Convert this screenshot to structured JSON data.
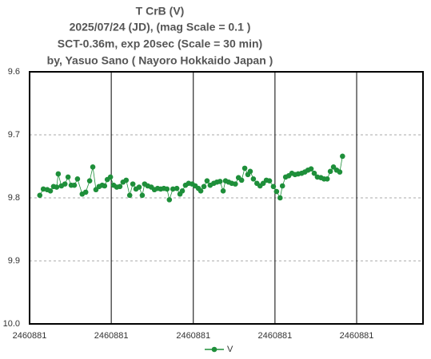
{
  "chart_data": {
    "type": "line",
    "title": [
      "T CrB  (V)",
      "2025/07/24 (JD),   (mag Scale = 0.1 )",
      "SCT-0.36m, exp 20sec (Scale = 30 min)",
      "by, Yasuo Sano ( Nayoro Hokkaido Japan )"
    ],
    "x": [
      2460881.6276,
      2460881.6285,
      2460881.6295,
      2460881.6303,
      2460881.6311,
      2460881.6319,
      2460881.6323,
      2460881.6331,
      2460881.634,
      2460881.6348,
      2460881.6356,
      2460881.6364,
      2460881.6372,
      2460881.6384,
      2460881.6393,
      2460881.6403,
      2460881.6411,
      2460881.6419,
      2460881.6427,
      2460881.6435,
      2460881.6441,
      2460881.6448,
      2460881.6456,
      2460881.6464,
      2460881.6472,
      2460881.648,
      2460881.6488,
      2460881.6496,
      2460881.6505,
      2460881.6513,
      2460881.6521,
      2460881.6529,
      2460881.6537,
      2460881.6543,
      2460881.6551,
      2460881.656,
      2460881.6568,
      2460881.6576,
      2460881.6584,
      2460881.6592,
      2460881.66,
      2460881.6606,
      2460881.6615,
      2460881.6625,
      2460881.6633,
      2460881.6639,
      2460881.6647,
      2460881.6655,
      2460881.6664,
      2460881.6672,
      2460881.668,
      2460881.6686,
      2460881.6694,
      2460881.6702,
      2460881.671,
      2460881.6719,
      2460881.6727,
      2460881.6735,
      2460881.6743,
      2460881.6749,
      2460881.6757,
      2460881.6765,
      2460881.6774,
      2460881.6782,
      2460881.679,
      2460881.6798,
      2460881.6806,
      2460881.6812,
      2460881.682,
      2460881.6829,
      2460881.6837,
      2460881.6845,
      2460881.6853,
      2460881.6861,
      2460881.6871,
      2460881.6879,
      2460881.6888,
      2460881.6894,
      2460881.6902,
      2460881.691,
      2460881.6918,
      2460881.6926,
      2460881.6934,
      2460881.6943,
      2460881.6951,
      2460881.6959,
      2460881.6967,
      2460881.6975,
      2460881.6983,
      2460881.6992,
      2460881.7,
      2460881.7008,
      2460881.7016,
      2460881.7024,
      2460881.7032,
      2460881.704,
      2460881.7047
    ],
    "series": [
      {
        "name": "V",
        "color": "#1e8f3a",
        "values": [
          9.796,
          9.786,
          9.787,
          9.789,
          9.782,
          9.783,
          9.762,
          9.781,
          9.778,
          9.767,
          9.78,
          9.78,
          9.77,
          9.794,
          9.791,
          9.773,
          9.751,
          9.787,
          9.782,
          9.78,
          9.781,
          9.771,
          9.767,
          9.78,
          9.783,
          9.782,
          9.775,
          9.772,
          9.796,
          9.778,
          9.786,
          9.783,
          9.796,
          9.778,
          9.781,
          9.783,
          9.787,
          9.785,
          9.786,
          9.785,
          9.786,
          9.803,
          9.786,
          9.785,
          9.794,
          9.789,
          9.78,
          9.777,
          9.778,
          9.781,
          9.785,
          9.789,
          9.782,
          9.773,
          9.78,
          9.777,
          9.775,
          9.774,
          9.789,
          9.773,
          9.775,
          9.777,
          9.778,
          9.768,
          9.772,
          9.753,
          9.763,
          9.758,
          9.77,
          9.777,
          9.781,
          9.777,
          9.772,
          9.773,
          9.782,
          9.79,
          9.8,
          9.781,
          9.767,
          9.765,
          9.761,
          9.763,
          9.762,
          9.761,
          9.759,
          9.756,
          9.754,
          9.761,
          9.767,
          9.768,
          9.77,
          9.77,
          9.758,
          9.751,
          9.756,
          9.759,
          9.734
        ]
      }
    ],
    "xlim": [
      2460881.625,
      2460881.7252
    ],
    "xticks": [
      {
        "value": 2460881.625,
        "label": "2460881"
      },
      {
        "value": 2460881.6458,
        "label": "2460881"
      },
      {
        "value": 2460881.6667,
        "label": "2460881"
      },
      {
        "value": 2460881.6875,
        "label": "2460881"
      },
      {
        "value": 2460881.7083,
        "label": "2460881"
      }
    ],
    "ylim": [
      9.6,
      10
    ],
    "yticks": [
      9.6,
      9.7,
      9.8,
      9.9,
      {
        "value": 10,
        "label": "10.0"
      }
    ],
    "y_inverted": true,
    "x_grid": true,
    "y_grid": true,
    "legend": "bottom"
  }
}
